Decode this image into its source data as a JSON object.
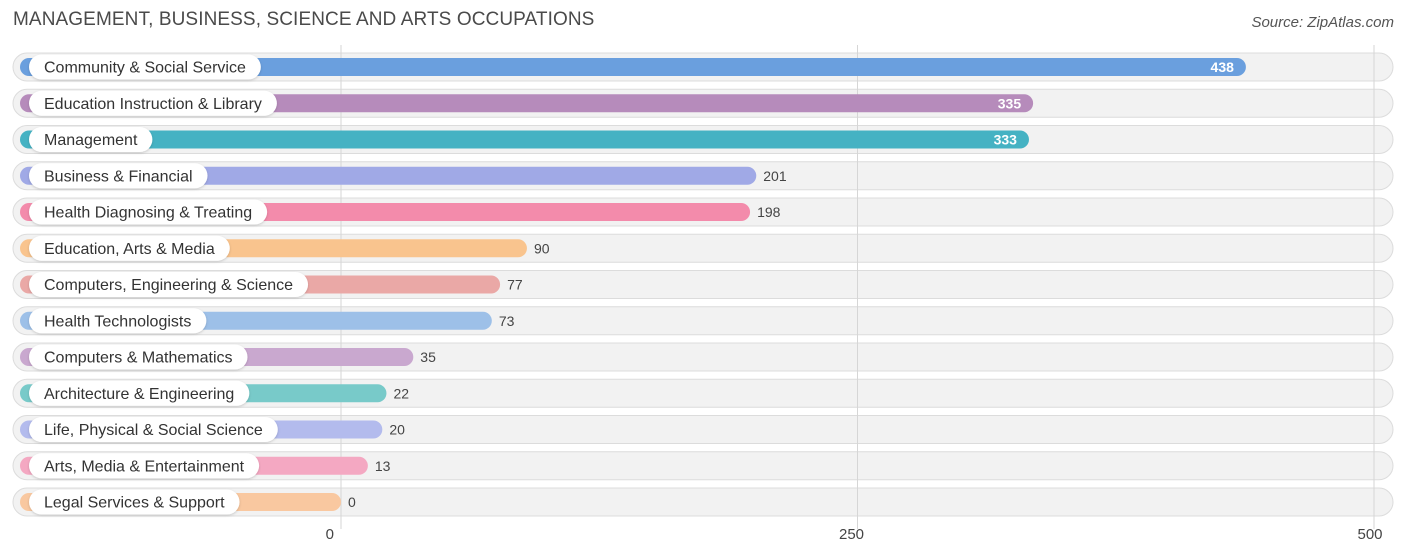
{
  "title": "MANAGEMENT, BUSINESS, SCIENCE AND ARTS OCCUPATIONS",
  "source": "Source: ZipAtlas.com",
  "chart_data": {
    "type": "bar",
    "orientation": "horizontal",
    "categories": [
      "Community & Social Service",
      "Education Instruction & Library",
      "Management",
      "Business & Financial",
      "Health Diagnosing & Treating",
      "Education, Arts & Media",
      "Computers, Engineering & Science",
      "Health Technologists",
      "Computers & Mathematics",
      "Architecture & Engineering",
      "Life, Physical & Social Science",
      "Arts, Media & Entertainment",
      "Legal Services & Support"
    ],
    "values": [
      438,
      335,
      333,
      201,
      198,
      90,
      77,
      73,
      35,
      22,
      20,
      13,
      0
    ],
    "value_labels": [
      "438",
      "335",
      "333",
      "201",
      "198",
      "90",
      "77",
      "73",
      "35",
      "22",
      "20",
      "13",
      "0"
    ],
    "colors": [
      "#6a9fde",
      "#b68bbb",
      "#45b2c3",
      "#a0a9e6",
      "#f38bab",
      "#f9c48e",
      "#eaa8a6",
      "#9dc0e8",
      "#c9a8cf",
      "#78cac9",
      "#b3bbed",
      "#f4a8c2",
      "#f9c8a0"
    ],
    "xlim": [
      0,
      500
    ],
    "xticks": [
      0,
      250,
      500
    ],
    "xtick_labels": [
      "0",
      "250",
      "500"
    ],
    "grid": true,
    "legend": "none"
  }
}
